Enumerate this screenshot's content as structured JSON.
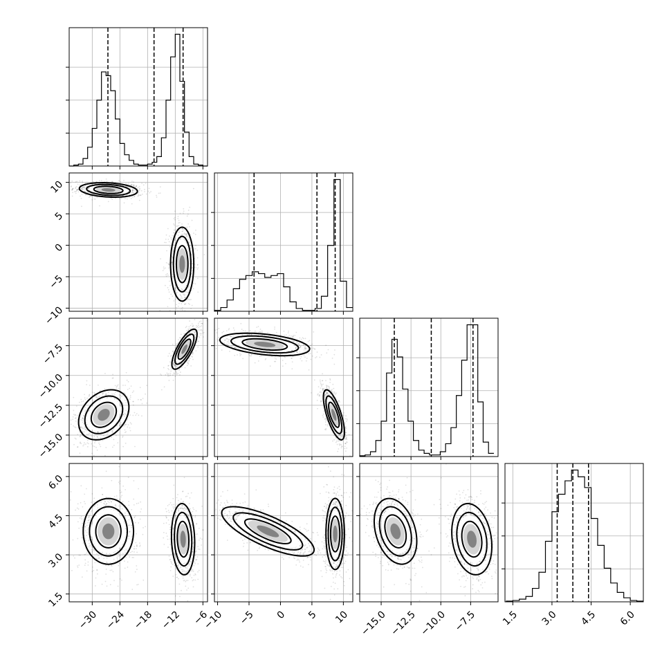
{
  "chart_data": {
    "type": "corner",
    "description_note": "",
    "parameters": [
      {
        "range": [
          -35,
          -5
        ],
        "ticks": [
          -30,
          -24,
          -18,
          -12,
          -6
        ]
      },
      {
        "range": [
          -10.5,
          11.5
        ],
        "ticks": [
          -10,
          -5,
          0,
          5,
          10
        ]
      },
      {
        "range": [
          -16.8,
          -5.2
        ],
        "ticks": [
          -15.0,
          -12.5,
          -10.0,
          -7.5
        ]
      },
      {
        "range": [
          1.2,
          6.5
        ],
        "ticks": [
          1.5,
          3.0,
          4.5,
          6.0
        ]
      }
    ],
    "tick_labels": [
      [
        "−30",
        "−24",
        "−18",
        "−12",
        "−6"
      ],
      [
        "−10",
        "−5",
        "0",
        "5",
        "10"
      ],
      [
        "−15.0",
        "−12.5",
        "−10.0",
        "−7.5"
      ],
      [
        "1.5",
        "3.0",
        "4.5",
        "6.0"
      ]
    ],
    "marginal_histograms": [
      {
        "bin_edges": [
          -35,
          -34,
          -33,
          -32,
          -31,
          -30,
          -29,
          -28,
          -27,
          -26,
          -25,
          -24,
          -23,
          -22,
          -21,
          -20,
          -19,
          -18,
          -17,
          -16,
          -15,
          -14,
          -13,
          -12,
          -11,
          -10,
          -9,
          -8,
          -7,
          -6,
          -5
        ],
        "counts": [
          0.0,
          0.5,
          1.0,
          4.0,
          10.0,
          20.0,
          35.0,
          50.0,
          48.0,
          40.0,
          25.0,
          12.0,
          6.0,
          3.0,
          1.0,
          0.5,
          0.5,
          1.0,
          2.0,
          5.0,
          15.0,
          35.0,
          58.0,
          70.0,
          45.0,
          18.0,
          5.0,
          1.0,
          0.5,
          0.0
        ],
        "quantiles": [
          -26.6,
          -16.6,
          -10.3
        ]
      },
      {
        "bin_edges": [
          -10.5,
          -9.5,
          -8.5,
          -7.5,
          -6.5,
          -5.5,
          -4.5,
          -3.5,
          -2.5,
          -1.5,
          -0.5,
          0.5,
          1.5,
          2.5,
          3.5,
          4.5,
          5.5,
          6.5,
          7.5,
          8.5,
          9.5,
          10.5,
          11.5
        ],
        "counts": [
          0.5,
          2.0,
          6.0,
          12.0,
          17.0,
          19.0,
          21.0,
          20.0,
          18.0,
          19.0,
          20.0,
          13.0,
          5.0,
          1.5,
          0.5,
          0.5,
          1.5,
          8.0,
          35.0,
          70.0,
          16.0,
          2.0
        ],
        "quantiles": [
          -4.2,
          5.8,
          8.7
        ]
      },
      {
        "bin_edges": [
          -16.8,
          -16.35,
          -15.9,
          -15.45,
          -15.0,
          -14.55,
          -14.1,
          -13.65,
          -13.2,
          -12.75,
          -12.3,
          -11.85,
          -11.4,
          -10.95,
          -10.5,
          -10.05,
          -9.6,
          -9.15,
          -8.7,
          -8.25,
          -7.8,
          -7.35,
          -6.9,
          -6.45,
          -6.0,
          -5.55
        ],
        "counts": [
          0.5,
          1.0,
          3.0,
          10.0,
          22.0,
          52.0,
          73.0,
          62.0,
          42.0,
          22.0,
          10.0,
          4.0,
          2.0,
          1.0,
          1.0,
          3.0,
          8.0,
          18.0,
          38.0,
          60.0,
          82.0,
          82.0,
          34.0,
          9.0,
          2.0
        ],
        "quantiles": [
          -13.9,
          -10.8,
          -7.3
        ]
      },
      {
        "bin_edges": [
          1.25,
          1.5,
          1.75,
          2.0,
          2.25,
          2.5,
          2.75,
          3.0,
          3.25,
          3.5,
          3.75,
          4.0,
          4.25,
          4.5,
          4.75,
          5.0,
          5.25,
          5.5,
          5.75,
          6.0,
          6.25,
          6.5
        ],
        "counts": [
          0.5,
          1.0,
          2.0,
          4.0,
          10.0,
          22.0,
          45.0,
          67.0,
          80.0,
          90.0,
          98.0,
          93.0,
          85.0,
          62.0,
          42.0,
          25.0,
          14.0,
          7.0,
          3.0,
          1.0,
          0.5
        ],
        "quantiles": [
          3.2,
          3.8,
          4.4
        ]
      }
    ],
    "joint_modes": [
      {
        "i": 0,
        "j": 1,
        "modes": [
          {
            "cx": -26.5,
            "cy": 8.8,
            "sx": 3.0,
            "sy": 0.55,
            "rho": -0.2,
            "w": 0.5
          },
          {
            "cx": -10.5,
            "cy": -3.0,
            "sx": 1.2,
            "sy": 2.8,
            "rho": 0.0,
            "w": 0.5
          }
        ]
      },
      {
        "i": 0,
        "j": 2,
        "modes": [
          {
            "cx": -27.5,
            "cy": -13.3,
            "sx": 2.6,
            "sy": 1.0,
            "rho": 0.3,
            "w": 0.5
          },
          {
            "cx": -10.0,
            "cy": -7.8,
            "sx": 1.3,
            "sy": 0.8,
            "rho": 0.75,
            "w": 0.5
          }
        ]
      },
      {
        "i": 1,
        "j": 2,
        "modes": [
          {
            "cx": -2.5,
            "cy": -7.4,
            "sx": 3.4,
            "sy": 0.45,
            "rho": -0.4,
            "w": 0.5
          },
          {
            "cx": 8.5,
            "cy": -13.3,
            "sx": 0.8,
            "sy": 1.0,
            "rho": -0.7,
            "w": 0.5
          }
        ]
      },
      {
        "i": 0,
        "j": 3,
        "modes": [
          {
            "cx": -26.5,
            "cy": 3.9,
            "sx": 2.6,
            "sy": 0.6,
            "rho": 0.0,
            "w": 0.5
          },
          {
            "cx": -10.3,
            "cy": 3.6,
            "sx": 1.2,
            "sy": 0.65,
            "rho": -0.1,
            "w": 0.5
          }
        ]
      },
      {
        "i": 1,
        "j": 3,
        "modes": [
          {
            "cx": -2.0,
            "cy": 3.9,
            "sx": 3.5,
            "sy": 0.45,
            "rho": -0.75,
            "w": 0.5
          },
          {
            "cx": 8.7,
            "cy": 3.8,
            "sx": 0.7,
            "sy": 0.65,
            "rho": 0.0,
            "w": 0.5
          }
        ]
      },
      {
        "i": 2,
        "j": 3,
        "modes": [
          {
            "cx": -13.8,
            "cy": 3.9,
            "sx": 0.85,
            "sy": 0.6,
            "rho": -0.3,
            "w": 0.5
          },
          {
            "cx": -7.4,
            "cy": 3.6,
            "sx": 0.8,
            "sy": 0.65,
            "rho": -0.2,
            "w": 0.5
          }
        ]
      }
    ]
  }
}
